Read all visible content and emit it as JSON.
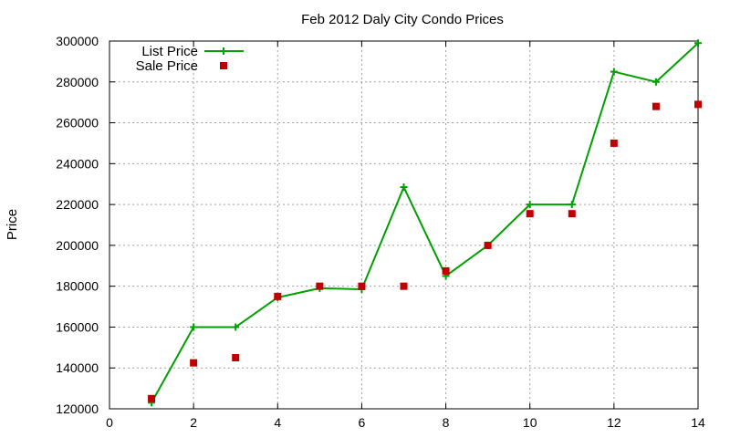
{
  "chart_data": {
    "type": "line",
    "title": "Feb 2012 Daly City Condo Prices",
    "xlabel": "",
    "ylabel": "Price",
    "xlim": [
      0,
      14
    ],
    "ylim": [
      120000,
      300000
    ],
    "x_ticks": [
      0,
      2,
      4,
      6,
      8,
      10,
      12,
      14
    ],
    "y_ticks": [
      120000,
      140000,
      160000,
      180000,
      200000,
      220000,
      240000,
      260000,
      280000,
      300000
    ],
    "grid": true,
    "legend_position": "top-left",
    "series": [
      {
        "name": "List Price",
        "style": "line+points",
        "color": "#00a000",
        "points": [
          {
            "x": 1,
            "y": 123000
          },
          {
            "x": 2,
            "y": 160000
          },
          {
            "x": 3,
            "y": 160000
          },
          {
            "x": 4,
            "y": 174500
          },
          {
            "x": 5,
            "y": 179000
          },
          {
            "x": 6,
            "y": 178500
          },
          {
            "x": 7,
            "y": 228500
          },
          {
            "x": 8,
            "y": 185000
          },
          {
            "x": 9,
            "y": 200000
          },
          {
            "x": 10,
            "y": 220000
          },
          {
            "x": 11,
            "y": 220000
          },
          {
            "x": 12,
            "y": 285000
          },
          {
            "x": 13,
            "y": 280000
          },
          {
            "x": 14,
            "y": 299000
          }
        ]
      },
      {
        "name": "Sale Price",
        "style": "points",
        "color": "#c00000",
        "points": [
          {
            "x": 1,
            "y": 125000
          },
          {
            "x": 2,
            "y": 142500
          },
          {
            "x": 3,
            "y": 145000
          },
          {
            "x": 4,
            "y": 175000
          },
          {
            "x": 5,
            "y": 180000
          },
          {
            "x": 6,
            "y": 180000
          },
          {
            "x": 7,
            "y": 180000
          },
          {
            "x": 8,
            "y": 187500
          },
          {
            "x": 9,
            "y": 200000
          },
          {
            "x": 10,
            "y": 215500
          },
          {
            "x": 11,
            "y": 215500
          },
          {
            "x": 12,
            "y": 250000
          },
          {
            "x": 13,
            "y": 268000
          },
          {
            "x": 14,
            "y": 269000
          }
        ]
      }
    ]
  }
}
